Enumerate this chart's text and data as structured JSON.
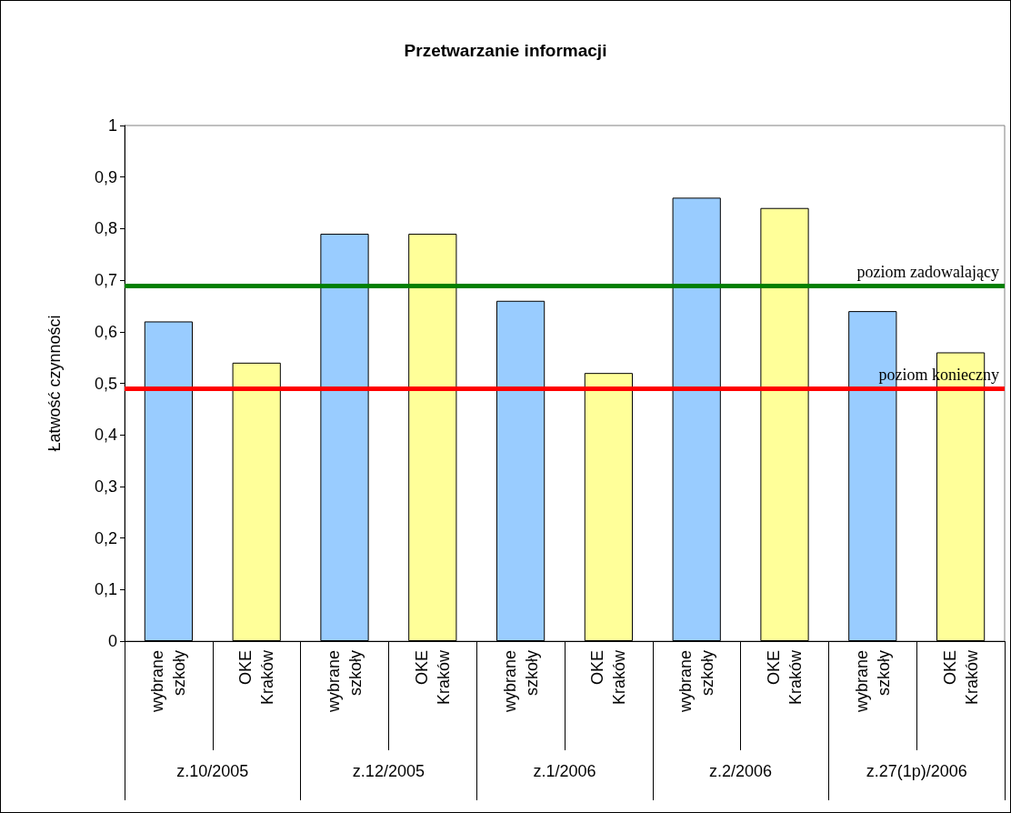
{
  "chart_data": {
    "type": "bar",
    "title": "Przetwarzanie informacji",
    "ylabel": "Łatwość czynności",
    "categories": [
      "wybrane szkoły",
      "OKE Kraków",
      "wybrane szkoły",
      "OKE Kraków",
      "wybrane szkoły",
      "OKE Kraków",
      "wybrane szkoły",
      "OKE Kraków",
      "wybrane szkoły",
      "OKE Kraków"
    ],
    "values": [
      0.62,
      0.54,
      0.79,
      0.79,
      0.66,
      0.52,
      0.86,
      0.84,
      0.64,
      0.56
    ],
    "colors": [
      "#99ccff",
      "#ffff99",
      "#99ccff",
      "#ffff99",
      "#99ccff",
      "#ffff99",
      "#99ccff",
      "#ffff99",
      "#99ccff",
      "#ffff99"
    ],
    "ylim": [
      0,
      1
    ],
    "yticks": [
      0,
      {
        "value": 0.1,
        "label": "0,1"
      },
      {
        "value": 0.2,
        "label": "0,2"
      },
      {
        "value": 0.3,
        "label": "0,3"
      },
      {
        "value": 0.4,
        "label": "0,4"
      },
      {
        "value": 0.5,
        "label": "0,5"
      },
      {
        "value": 0.6,
        "label": "0,6"
      },
      {
        "value": 0.7,
        "label": "0,7"
      },
      {
        "value": 0.8,
        "label": "0,8"
      },
      {
        "value": 0.9,
        "label": "0,9"
      },
      1
    ],
    "ref_lines": [
      {
        "axis": "y",
        "value": 0.69,
        "label": "poziom zadowalający",
        "color": "#008000"
      },
      {
        "axis": "y",
        "value": 0.49,
        "label": "poziom konieczny",
        "color": "#ff0000"
      }
    ],
    "annotations": [
      "z.10/2005",
      "z.12/2005",
      "z.1/2006",
      "z.2/2006",
      "z.27(1p)/2006"
    ],
    "grid": false
  }
}
